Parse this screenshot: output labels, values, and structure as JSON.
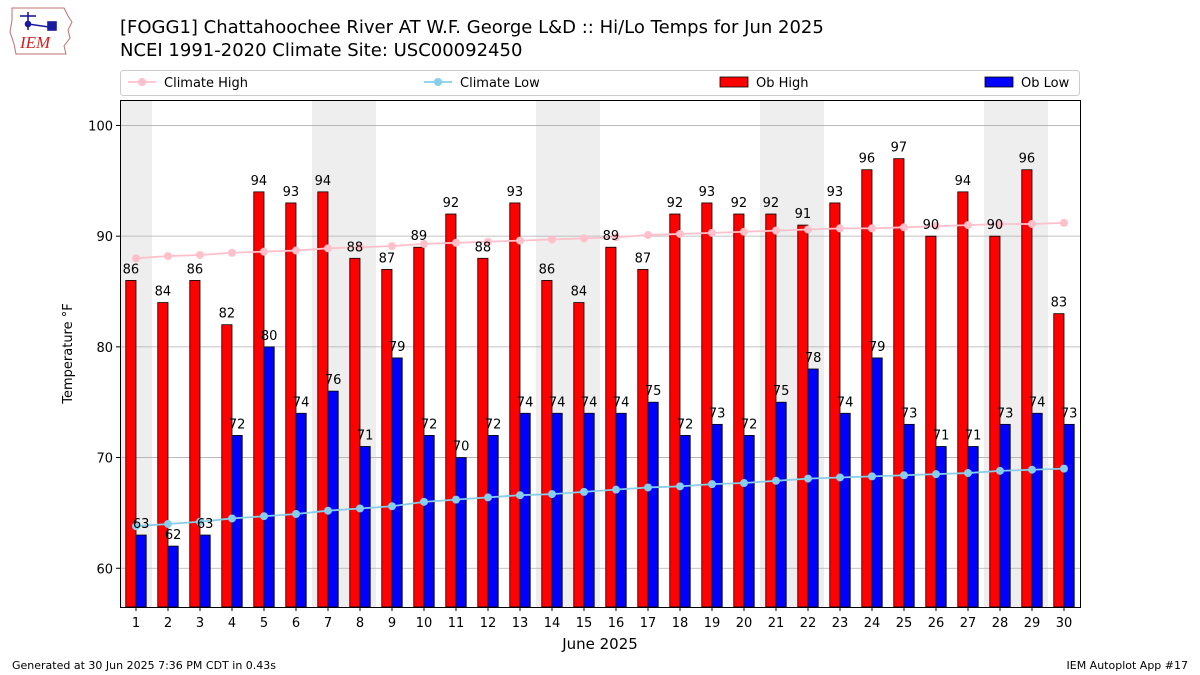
{
  "title_line1": "[FOGG1] Chattahoochee River  AT W.F. George L&D :: Hi/Lo Temps for Jun 2025",
  "title_line2": "NCEI 1991-2020 Climate Site: USC00092450",
  "logo_text": "IEM",
  "footer_left": "Generated at 30 Jun 2025 7:36 PM CDT in 0.43s",
  "footer_right": "IEM Autoplot App #17",
  "colors": {
    "ob_high": "#ff0000",
    "ob_low": "#0000ff",
    "climate_high": "#ffc0cb",
    "climate_low": "#87ceeb",
    "weekend_band": "#eeeeee",
    "grid": "#b0b0b0"
  },
  "chart_data": {
    "type": "bar",
    "xlabel": "June 2025",
    "ylabel": "Temperature °F",
    "ylim": [
      56.5,
      102.3
    ],
    "yticks": [
      60,
      70,
      80,
      90,
      100
    ],
    "grid": "horizontal",
    "legend_placement": "top",
    "categories": [
      "1",
      "2",
      "3",
      "4",
      "5",
      "6",
      "7",
      "8",
      "9",
      "10",
      "11",
      "12",
      "13",
      "14",
      "15",
      "16",
      "17",
      "18",
      "19",
      "20",
      "21",
      "22",
      "23",
      "24",
      "25",
      "26",
      "27",
      "28",
      "29",
      "30"
    ],
    "weekend_days": [
      1,
      7,
      8,
      14,
      15,
      21,
      22,
      28,
      29
    ],
    "series": [
      {
        "name": "Climate High",
        "kind": "line",
        "values": [
          88.0,
          88.2,
          88.3,
          88.5,
          88.6,
          88.7,
          88.9,
          89.0,
          89.1,
          89.3,
          89.4,
          89.5,
          89.6,
          89.7,
          89.8,
          89.9,
          90.1,
          90.2,
          90.3,
          90.4,
          90.5,
          90.6,
          90.7,
          90.7,
          90.8,
          90.9,
          91.0,
          91.1,
          91.1,
          91.2
        ]
      },
      {
        "name": "Climate Low",
        "kind": "line",
        "values": [
          63.8,
          64.0,
          64.2,
          64.5,
          64.7,
          64.9,
          65.2,
          65.4,
          65.6,
          66.0,
          66.2,
          66.4,
          66.6,
          66.7,
          66.9,
          67.1,
          67.3,
          67.4,
          67.6,
          67.7,
          67.9,
          68.1,
          68.2,
          68.3,
          68.4,
          68.5,
          68.6,
          68.8,
          68.9,
          69.0
        ]
      },
      {
        "name": "Ob High",
        "kind": "bar",
        "values": [
          86,
          84,
          86,
          82,
          94,
          93,
          94,
          88,
          87,
          89,
          92,
          88,
          93,
          86,
          84,
          89,
          87,
          92,
          93,
          92,
          92,
          91,
          93,
          96,
          97,
          90,
          94,
          90,
          96,
          83
        ]
      },
      {
        "name": "Ob Low",
        "kind": "bar",
        "values": [
          63,
          62,
          63,
          72,
          80,
          74,
          76,
          71,
          79,
          72,
          70,
          72,
          74,
          74,
          74,
          74,
          75,
          72,
          73,
          72,
          75,
          78,
          74,
          79,
          73,
          71,
          71,
          73,
          74,
          73
        ]
      }
    ]
  }
}
